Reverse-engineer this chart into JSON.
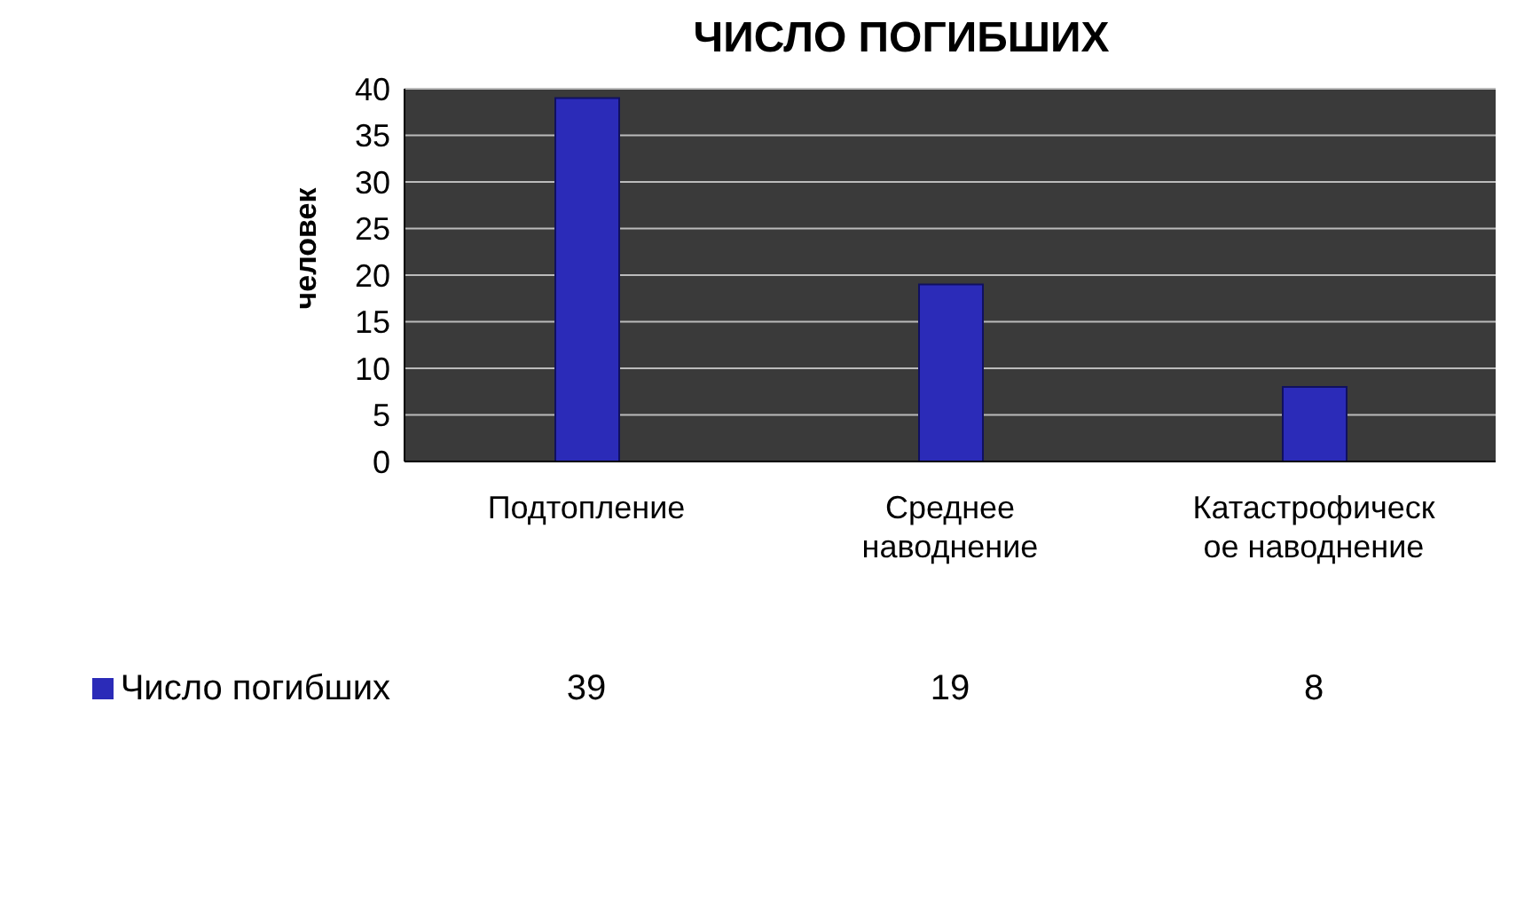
{
  "chart_data": {
    "type": "bar",
    "title": "ЧИСЛО ПОГИБШИХ",
    "ylabel": "человек",
    "categories": [
      "Подтопление",
      "Среднее наводнение",
      "Катастрофическое наводнение"
    ],
    "series": [
      {
        "name": "Число погибших",
        "color": "#2b2bb8",
        "values": [
          39,
          19,
          8
        ]
      }
    ],
    "ylim": [
      0,
      40
    ],
    "yticks": [
      0,
      5,
      10,
      15,
      20,
      25,
      30,
      35,
      40
    ],
    "grid": "y",
    "legend": "bottom left",
    "data_labels": true
  }
}
